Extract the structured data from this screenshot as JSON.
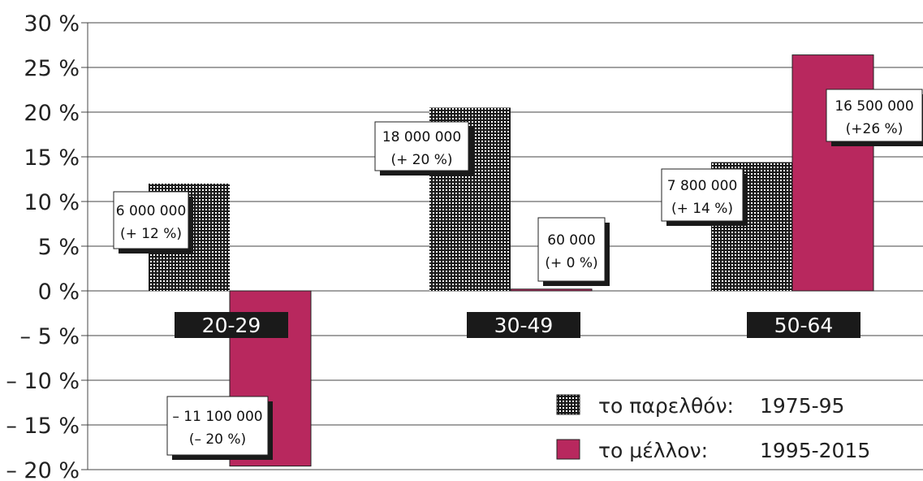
{
  "chart_data": {
    "type": "bar",
    "categories": [
      "20-29",
      "30-49",
      "50-64"
    ],
    "series": [
      {
        "name": "το παρελθόν: 1975-95",
        "label_prefix": "το παρελθόν:",
        "label_period": "1975-95",
        "pattern": "dotted",
        "color": "#1a1a1a",
        "values": [
          12,
          20.5,
          14.4
        ],
        "labels": [
          [
            "6 000 000",
            "(+ 12 %)"
          ],
          [
            "18 000 000",
            "(+ 20 %)"
          ],
          [
            "7 800 000",
            "(+ 14 %)"
          ]
        ]
      },
      {
        "name": "το μέλλον: 1995-2015",
        "label_prefix": "το μέλλον:",
        "label_period": "1995-2015",
        "pattern": "solid",
        "color": "#b8285e",
        "values": [
          -19.6,
          0.2,
          26.4
        ],
        "labels": [
          [
            "– 11 100 000",
            "(– 20 %)"
          ],
          [
            "60 000",
            "(+ 0 %)"
          ],
          [
            "16 500 000",
            "(+26 %)"
          ]
        ]
      }
    ],
    "yticks": [
      30,
      25,
      20,
      15,
      10,
      5,
      0,
      -5,
      -10,
      -15,
      -20
    ],
    "ytick_labels": [
      "30 %",
      "25 %",
      "20 %",
      "15 %",
      "10 %",
      "5 %",
      "0 %",
      "– 5 %",
      "– 10 %",
      "– 15 %",
      "– 20 %"
    ],
    "ylim": [
      -20,
      30
    ],
    "grid": true,
    "legend_position": "bottom-right"
  }
}
